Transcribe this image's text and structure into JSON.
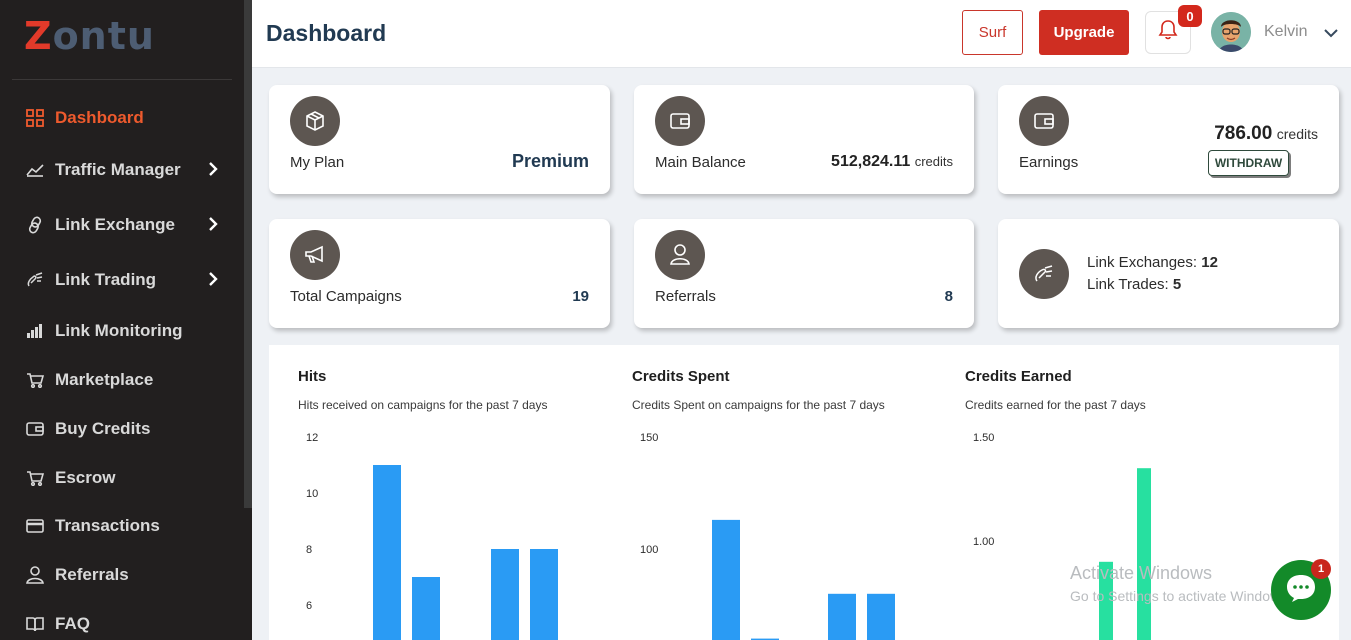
{
  "brand": {
    "logo_text": "ontu",
    "logo_letter": "Z"
  },
  "sidebar": {
    "items": [
      {
        "label": "Dashboard",
        "icon": "grid-icon",
        "active": true
      },
      {
        "label": "Traffic Manager",
        "icon": "trend-icon",
        "has_children": true
      },
      {
        "label": "Link Exchange",
        "icon": "link-icon",
        "has_children": true
      },
      {
        "label": "Link Trading",
        "icon": "link-trade-icon",
        "has_children": true
      },
      {
        "label": "Link Monitoring",
        "icon": "bar-chart-icon"
      },
      {
        "label": "Marketplace",
        "icon": "cart-icon"
      },
      {
        "label": "Buy Credits",
        "icon": "wallet-icon"
      },
      {
        "label": "Escrow",
        "icon": "cart-icon"
      },
      {
        "label": "Transactions",
        "icon": "card-icon"
      },
      {
        "label": "Referrals",
        "icon": "user-icon"
      },
      {
        "label": "FAQ",
        "icon": "book-icon"
      }
    ]
  },
  "header": {
    "title": "Dashboard",
    "surf_label": "Surf",
    "upgrade_label": "Upgrade",
    "notification_count": "0",
    "user_name": "Kelvin"
  },
  "cards": {
    "plan": {
      "label": "My Plan",
      "value": "Premium"
    },
    "balance": {
      "label": "Main Balance",
      "value": "512,824.11",
      "unit": "credits"
    },
    "earnings": {
      "label": "Earnings",
      "value": "786.00",
      "unit": "credits",
      "button": "WITHDRAW"
    },
    "campaigns": {
      "label": "Total Campaigns",
      "value": "19"
    },
    "referrals": {
      "label": "Referrals",
      "value": "8"
    },
    "links": {
      "exchanges_label": "Link Exchanges:",
      "exchanges_value": "12",
      "trades_label": "Link Trades:",
      "trades_value": "5"
    }
  },
  "chart_data": [
    {
      "type": "bar",
      "title": "Hits",
      "subtitle": "Hits received on campaigns for the past 7 days",
      "y_ticks": [
        "12",
        "10",
        "8",
        "6"
      ],
      "ylim": [
        0,
        12
      ],
      "values": [
        11,
        7,
        null,
        8,
        8
      ],
      "color": "#2a9bf4"
    },
    {
      "type": "bar",
      "title": "Credits Spent",
      "subtitle": "Credits Spent on campaigns for the past 7 days",
      "y_ticks": [
        "150",
        "100"
      ],
      "ylim": [
        0,
        150
      ],
      "values": [
        113,
        60,
        null,
        80,
        80
      ],
      "color": "#2a9bf4"
    },
    {
      "type": "bar",
      "title": "Credits Earned",
      "subtitle": "Credits earned for the past 7 days",
      "y_ticks": [
        "1.50",
        "1.00"
      ],
      "ylim": [
        0,
        1.5
      ],
      "values": [
        0.9,
        1.35
      ],
      "color": "#27e0a0"
    }
  ],
  "overlay": {
    "watermark_title": "Activate Windows",
    "watermark_sub": "Go to Settings to activate Windows.",
    "chat_badge": "1"
  }
}
